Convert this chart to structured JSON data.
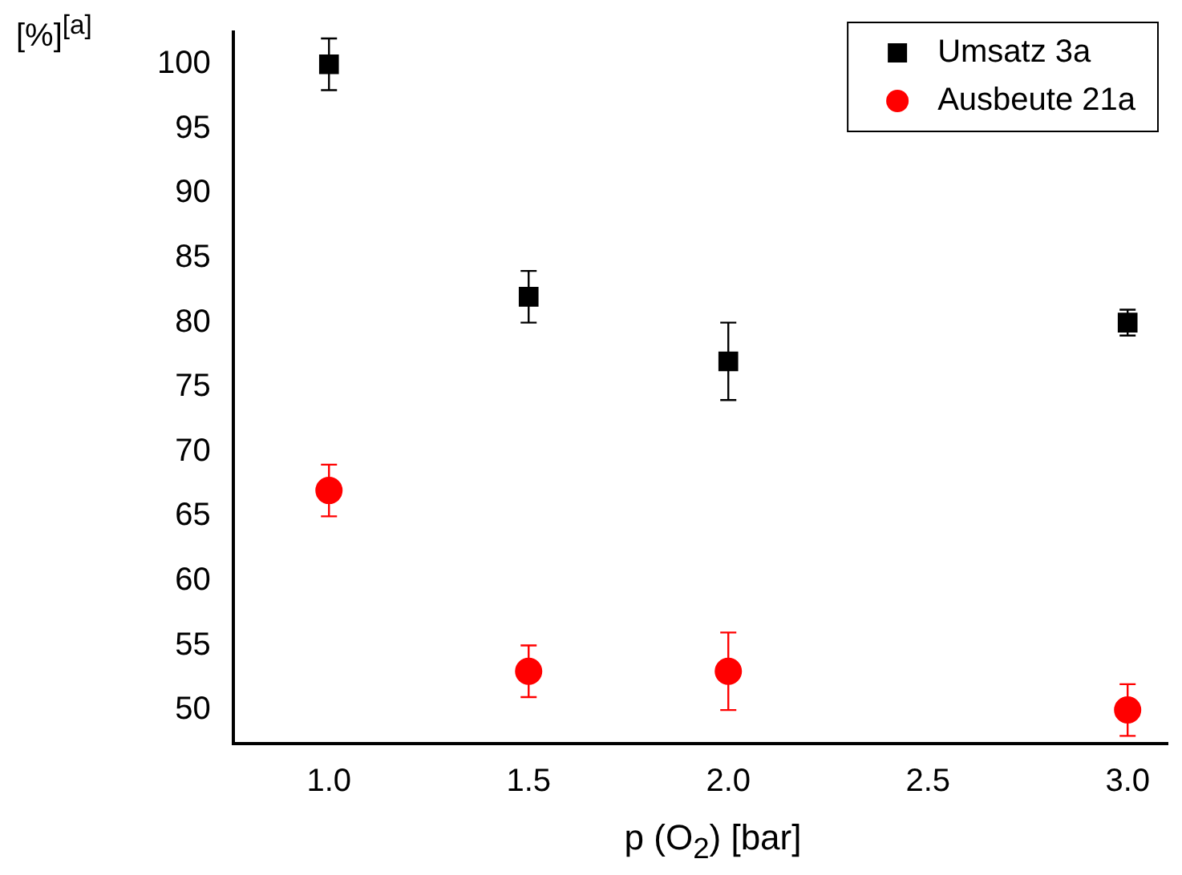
{
  "chart_data": {
    "type": "scatter",
    "xlabel": "p (O$_{2}$) [bar]",
    "ylabel": "[%]$^{[a]}$",
    "x": [
      1.0,
      1.5,
      2.0,
      3.0
    ],
    "xlim": [
      0.76,
      3.1
    ],
    "xticks": [
      {
        "value": 1,
        "label": "1.0"
      },
      {
        "value": 1.5,
        "label": "1.5"
      },
      {
        "value": 2,
        "label": "2.0"
      },
      {
        "value": 2.5,
        "label": "2.5"
      },
      {
        "value": 3,
        "label": "3.0"
      }
    ],
    "ylim": [
      47.4,
      102.5
    ],
    "yticks": [
      50,
      55,
      60,
      65,
      70,
      75,
      80,
      85,
      90,
      95,
      100
    ],
    "grid": false,
    "legend": "top right",
    "series": [
      {
        "name": "Umsatz 3a",
        "color": "#000000",
        "marker": "square",
        "values": [
          100,
          82,
          77,
          80
        ],
        "errors": [
          2,
          2,
          3,
          1
        ]
      },
      {
        "name": "Ausbeute 21a",
        "color": "#ff0000",
        "marker": "circle",
        "values": [
          67,
          53,
          53,
          50
        ],
        "errors": [
          2,
          2,
          3,
          2
        ]
      }
    ]
  }
}
